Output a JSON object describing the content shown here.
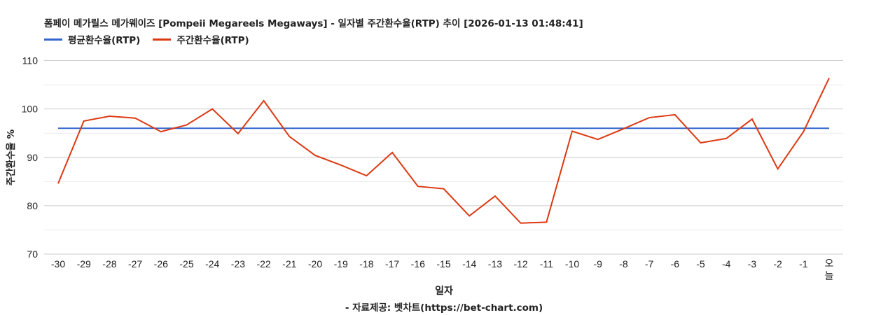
{
  "header": {
    "title": "폼페이 메가릴스 메가웨이즈 [Pompeii Megareels Megaways] - 일자별 주간환수율(RTP) 추이 [2026-01-13 01:48:41]"
  },
  "legend": [
    {
      "label": "평균환수율(RTP)",
      "color": "#3366cc"
    },
    {
      "label": "주간환수율(RTP)",
      "color": "#dc3912"
    }
  ],
  "axes": {
    "x_label": "일자",
    "y_label": "주간환수율 %",
    "y_ticks": [
      "110",
      "100",
      "90",
      "80",
      "70"
    ]
  },
  "footer": {
    "credit": "- 자료제공: 벳차트(https://bet-chart.com)"
  },
  "chart_data": {
    "type": "line",
    "title": "폼페이 메가릴스 메가웨이즈 [Pompeii Megareels Megaways] - 일자별 주간환수율(RTP) 추이 [2026-01-13 01:48:41]",
    "xlabel": "일자",
    "ylabel": "주간환수율 %",
    "ylim": [
      70,
      110
    ],
    "y_ticks": [
      70,
      80,
      90,
      100,
      110
    ],
    "grid": true,
    "legend_position": "top-left",
    "categories": [
      "-30",
      "-29",
      "-28",
      "-27",
      "-26",
      "-25",
      "-24",
      "-23",
      "-22",
      "-21",
      "-20",
      "-19",
      "-18",
      "-17",
      "-16",
      "-15",
      "-14",
      "-13",
      "-12",
      "-11",
      "-10",
      "-9",
      "-8",
      "-7",
      "-6",
      "-5",
      "-4",
      "-3",
      "-2",
      "-1",
      "오늘"
    ],
    "series": [
      {
        "name": "평균환수율(RTP)",
        "color": "#3366cc",
        "values": [
          96.0,
          96.0,
          96.0,
          96.0,
          96.0,
          96.0,
          96.0,
          96.0,
          96.0,
          96.0,
          96.0,
          96.0,
          96.0,
          96.0,
          96.0,
          96.0,
          96.0,
          96.0,
          96.0,
          96.0,
          96.0,
          96.0,
          96.0,
          96.0,
          96.0,
          96.0,
          96.0,
          96.0,
          96.0,
          96.0,
          96.0
        ]
      },
      {
        "name": "주간환수율(RTP)",
        "color": "#dc3912",
        "values": [
          84.6,
          97.5,
          98.5,
          98.1,
          95.3,
          96.7,
          100.0,
          94.9,
          101.7,
          94.3,
          90.4,
          88.4,
          86.2,
          91.0,
          84.0,
          83.5,
          77.9,
          82.0,
          76.4,
          76.6,
          95.4,
          93.7,
          95.9,
          98.2,
          98.8,
          93.0,
          93.9,
          97.9,
          87.6,
          95.3,
          106.4
        ]
      }
    ]
  }
}
